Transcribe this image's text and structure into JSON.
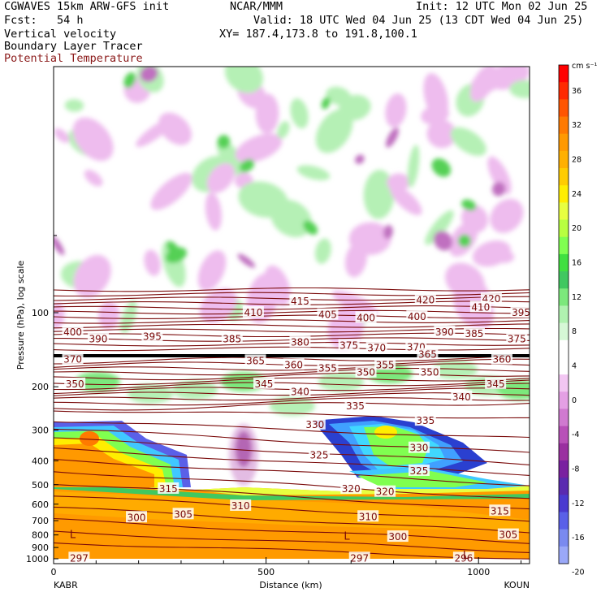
{
  "header": {
    "model": "CGWAVES 15km ARW-GFS init",
    "org": "NCAR/MMM",
    "init": "Init: 12 UTC Mon 02 Jun 25",
    "fcst": "Fcst:   54 h",
    "valid": "Valid: 18 UTC Wed 04 Jun 25 (13 CDT Wed 04 Jun 25)",
    "field1": "Vertical velocity",
    "field2": "Boundary Layer Tracer",
    "field3": "Potential Temperature",
    "xy": "XY= 187.4,173.8 to 191.8,100.1"
  },
  "colors": {
    "theta_contour": "#7a0a0a",
    "dark_band": "#000000"
  },
  "chart_data": {
    "type": "contour cross-section",
    "ylabel": "Pressure (hPa), log scale",
    "xlabel": "Distance (km)",
    "x_ticks": [
      "0",
      "500",
      "1000"
    ],
    "x_tick_values": [
      0,
      500,
      1000
    ],
    "xlim": [
      0,
      1120
    ],
    "y_ticks": [
      "100",
      "200",
      "300",
      "400",
      "500",
      "600",
      "700",
      "800",
      "900",
      "1000"
    ],
    "y_tick_values": [
      100,
      200,
      300,
      400,
      500,
      600,
      700,
      800,
      900,
      1000
    ],
    "y_scale": "log",
    "left_station": "KABR",
    "right_station": "KOUN",
    "colorbar": {
      "unit": "cm s⁻¹",
      "tick_labels": [
        "36",
        "32",
        "28",
        "24",
        "20",
        "16",
        "12",
        "8",
        "4",
        "0",
        "-4",
        "-8",
        "-12",
        "-16",
        "-20"
      ],
      "colors": [
        "#ff0000",
        "#ff2a00",
        "#ff5500",
        "#ff7a00",
        "#ff9900",
        "#ffb000",
        "#ffcc00",
        "#ffee00",
        "#e8ff40",
        "#b8ff40",
        "#80ff50",
        "#40e040",
        "#40c860",
        "#7ce87c",
        "#b0f2b0",
        "#d6f8d6",
        "#ffffff",
        "#ffffff",
        "#f2c6f2",
        "#e4a0e4",
        "#d07ad0",
        "#b850b8",
        "#9a30a0",
        "#7a20a0",
        "#5a2ab0",
        "#4a3ad0",
        "#5a60e8",
        "#7a8af0",
        "#9aa8f8"
      ]
    },
    "theta_labels": [
      {
        "text": "415",
        "km": 580,
        "p": 90
      },
      {
        "text": "420",
        "km": 875,
        "p": 89
      },
      {
        "text": "420",
        "km": 1030,
        "p": 88
      },
      {
        "text": "415",
        "km": 1185,
        "p": 88
      },
      {
        "text": "410",
        "km": 1005,
        "p": 95
      },
      {
        "text": "410",
        "km": 470,
        "p": 100
      },
      {
        "text": "405",
        "km": 645,
        "p": 102
      },
      {
        "text": "400",
        "km": 735,
        "p": 105
      },
      {
        "text": "400",
        "km": 855,
        "p": 104
      },
      {
        "text": "395",
        "km": 1100,
        "p": 100
      },
      {
        "text": "400",
        "km": 45,
        "p": 120
      },
      {
        "text": "390",
        "km": 105,
        "p": 128
      },
      {
        "text": "395",
        "km": 232,
        "p": 125
      },
      {
        "text": "385",
        "km": 420,
        "p": 128
      },
      {
        "text": "380",
        "km": 580,
        "p": 132
      },
      {
        "text": "375",
        "km": 695,
        "p": 136
      },
      {
        "text": "370",
        "km": 760,
        "p": 139
      },
      {
        "text": "370",
        "km": 853,
        "p": 138
      },
      {
        "text": "390",
        "km": 920,
        "p": 120
      },
      {
        "text": "385",
        "km": 990,
        "p": 122
      },
      {
        "text": "375",
        "km": 1090,
        "p": 128
      },
      {
        "text": "365",
        "km": 880,
        "p": 148
      },
      {
        "text": "360",
        "km": 1055,
        "p": 155
      },
      {
        "text": "370",
        "km": 45,
        "p": 155
      },
      {
        "text": "365",
        "km": 475,
        "p": 157
      },
      {
        "text": "360",
        "km": 565,
        "p": 163
      },
      {
        "text": "355",
        "km": 645,
        "p": 168
      },
      {
        "text": "355",
        "km": 780,
        "p": 163
      },
      {
        "text": "350",
        "km": 735,
        "p": 175
      },
      {
        "text": "350",
        "km": 885,
        "p": 175
      },
      {
        "text": "345",
        "km": 1040,
        "p": 195
      },
      {
        "text": "350",
        "km": 50,
        "p": 195
      },
      {
        "text": "345",
        "km": 495,
        "p": 195
      },
      {
        "text": "340",
        "km": 580,
        "p": 210
      },
      {
        "text": "340",
        "km": 960,
        "p": 220
      },
      {
        "text": "335",
        "km": 710,
        "p": 240
      },
      {
        "text": "335",
        "km": 875,
        "p": 275
      },
      {
        "text": "330",
        "km": 615,
        "p": 285
      },
      {
        "text": "330",
        "km": 860,
        "p": 355
      },
      {
        "text": "325",
        "km": 625,
        "p": 380
      },
      {
        "text": "325",
        "km": 860,
        "p": 440
      },
      {
        "text": "320",
        "km": 700,
        "p": 520
      },
      {
        "text": "320",
        "km": 780,
        "p": 535
      },
      {
        "text": "315",
        "km": 270,
        "p": 520
      },
      {
        "text": "310",
        "km": 440,
        "p": 610
      },
      {
        "text": "310",
        "km": 740,
        "p": 675
      },
      {
        "text": "315",
        "km": 1050,
        "p": 640
      },
      {
        "text": "300",
        "km": 195,
        "p": 680
      },
      {
        "text": "305",
        "km": 305,
        "p": 660
      },
      {
        "text": "300",
        "km": 810,
        "p": 815
      },
      {
        "text": "305",
        "km": 1070,
        "p": 800
      },
      {
        "text": "297",
        "km": 60,
        "p": 995
      },
      {
        "text": "297",
        "km": 720,
        "p": 995
      },
      {
        "text": "296",
        "km": 965,
        "p": 995
      }
    ],
    "low_markers": [
      {
        "text": "L",
        "km": 45,
        "p": 800
      },
      {
        "text": "L",
        "km": 690,
        "p": 810
      },
      {
        "text": "L",
        "km": 970,
        "p": 970
      }
    ]
  }
}
